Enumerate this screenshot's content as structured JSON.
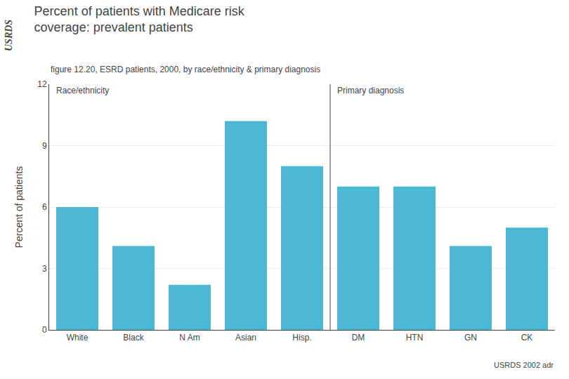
{
  "chart_data": {
    "type": "bar",
    "title": "Percent of patients with Medicare risk\ncoverage: prevalent patients",
    "subtitle": "figure 12.20, ESRD patients, 2000, by race/ethnicity & primary diagnosis",
    "ylabel": "Percent of patients",
    "categories": [
      "White",
      "Black",
      "N Am",
      "Asian",
      "Hisp.",
      "DM",
      "HTN",
      "GN",
      "CK"
    ],
    "values": [
      6.0,
      4.1,
      2.2,
      10.2,
      8.0,
      7.0,
      7.0,
      4.1,
      5.0
    ],
    "color": "#4DB8D4",
    "ylim": [
      0,
      12
    ],
    "yticks": [
      0,
      3,
      6,
      9,
      12
    ],
    "grid": true,
    "annotations": [
      {
        "text": "Race/ethnicity",
        "category": "White"
      },
      {
        "text": "Primary diagnosis",
        "category": "DM"
      },
      {
        "text": "USRDS"
      },
      {
        "text": "USRDS 2002 adr"
      }
    ]
  }
}
